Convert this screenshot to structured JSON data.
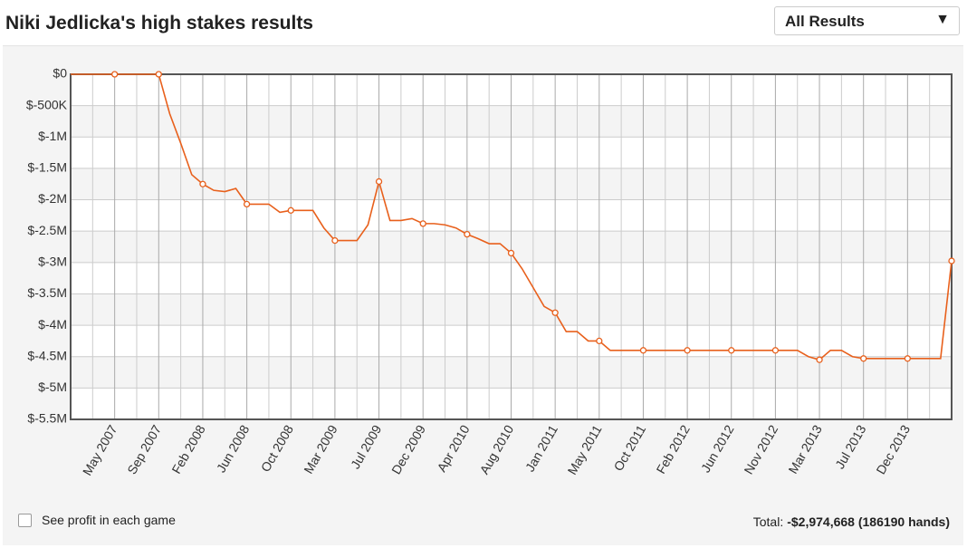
{
  "chart_data": {
    "type": "line",
    "title": "Niki Jedlicka's high stakes results",
    "categories": [
      null,
      null,
      null,
      null,
      "May 2007",
      null,
      null,
      null,
      "Sep 2007",
      null,
      null,
      null,
      "Feb 2008",
      null,
      null,
      null,
      "Jun 2008",
      null,
      null,
      null,
      "Oct 2008",
      null,
      null,
      null,
      "Mar 2009",
      null,
      null,
      null,
      "Jul 2009",
      null,
      null,
      null,
      "Dec 2009",
      null,
      null,
      null,
      "Apr 2010",
      null,
      null,
      null,
      "Aug 2010",
      null,
      null,
      null,
      "Jan 2011",
      null,
      null,
      null,
      "May 2011",
      null,
      null,
      null,
      "Oct 2011",
      null,
      null,
      null,
      "Feb 2012",
      null,
      null,
      null,
      "Jun 2012",
      null,
      null,
      null,
      "Nov 2012",
      null,
      null,
      null,
      "Mar 2013",
      null,
      null,
      null,
      "Jul 2013",
      null,
      null,
      null,
      "Dec 2013",
      null,
      null,
      null,
      null
    ],
    "series": [
      {
        "color": "#e8601c",
        "values": [
          0,
          0,
          0,
          0,
          0,
          0,
          0,
          0,
          0,
          -630000,
          -1100000,
          -1600000,
          -1750000,
          -1850000,
          -1870000,
          -1820000,
          -2070000,
          -2070000,
          -2070000,
          -2200000,
          -2170000,
          -2170000,
          -2170000,
          -2450000,
          -2650000,
          -2650000,
          -2650000,
          -2400000,
          -1710000,
          -2330000,
          -2330000,
          -2300000,
          -2380000,
          -2380000,
          -2400000,
          -2450000,
          -2550000,
          -2620000,
          -2700000,
          -2700000,
          -2850000,
          -3100000,
          -3400000,
          -3700000,
          -3800000,
          -4100000,
          -4100000,
          -4250000,
          -4250000,
          -4400000,
          -4400000,
          -4400000,
          -4400000,
          -4400000,
          -4400000,
          -4400000,
          -4400000,
          -4400000,
          -4400000,
          -4400000,
          -4400000,
          -4400000,
          -4400000,
          -4400000,
          -4400000,
          -4400000,
          -4400000,
          -4500000,
          -4550000,
          -4400000,
          -4400000,
          -4500000,
          -4530000,
          -4530000,
          -4530000,
          -4530000,
          -4530000,
          -4530000,
          -4530000,
          -4530000,
          -2974668
        ]
      }
    ],
    "ylim": [
      -5500000,
      0
    ],
    "yticks": [
      {
        "value": 0,
        "label": "$0"
      },
      {
        "value": -500000,
        "label": "$-500K"
      },
      {
        "value": -1000000,
        "label": "$-1M"
      },
      {
        "value": -1500000,
        "label": "$-1.5M"
      },
      {
        "value": -2000000,
        "label": "$-2M"
      },
      {
        "value": -2500000,
        "label": "$-2.5M"
      },
      {
        "value": -3000000,
        "label": "$-3M"
      },
      {
        "value": -3500000,
        "label": "$-3.5M"
      },
      {
        "value": -4000000,
        "label": "$-4M"
      },
      {
        "value": -4500000,
        "label": "$-4.5M"
      },
      {
        "value": -5000000,
        "label": "$-5M"
      },
      {
        "value": -5500000,
        "label": "$-5.5M"
      }
    ],
    "grid": true
  },
  "controls": {
    "dropdown": "All Results",
    "dropdown_arrow": "▼",
    "checkbox_label": "See profit in each game"
  },
  "footer": {
    "total_label": "Total:",
    "total_value": "-$2,974,668 (186190 hands)"
  }
}
